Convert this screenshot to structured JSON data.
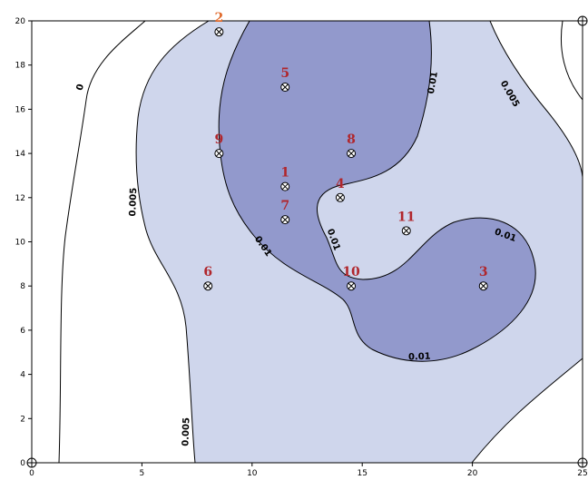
{
  "chart_data": {
    "type": "contour",
    "title": "",
    "xlabel": "",
    "ylabel": "",
    "xlim": [
      0,
      25
    ],
    "ylim": [
      0,
      20
    ],
    "x_ticks": [
      "0",
      "5",
      "10",
      "15",
      "20",
      "25"
    ],
    "y_ticks": [
      "0",
      "2",
      "4",
      "6",
      "8",
      "10",
      "12",
      "14",
      "16",
      "18",
      "20"
    ],
    "contour_levels": [
      0,
      0.005,
      0.01
    ],
    "region_colors": {
      "outer": "#ffffff",
      "low": "#cfd6ec",
      "high": "#9299cc"
    },
    "contour_labels": [
      {
        "text": "0",
        "x": 2.2,
        "y": 17.0
      },
      {
        "text": "0.005",
        "x": 4.6,
        "y": 11.8
      },
      {
        "text": "0.005",
        "x": 7.0,
        "y": 1.4
      },
      {
        "text": "0.005",
        "x": 21.7,
        "y": 16.7
      },
      {
        "text": "0.01",
        "x": 18.2,
        "y": 17.2
      },
      {
        "text": "0.01",
        "x": 10.5,
        "y": 9.8
      },
      {
        "text": "0.01",
        "x": 13.7,
        "y": 10.1
      },
      {
        "text": "0.01",
        "x": 21.5,
        "y": 10.3
      },
      {
        "text": "0.01",
        "x": 17.6,
        "y": 4.8
      }
    ],
    "points": [
      {
        "label": "1",
        "x": 11.5,
        "y": 12.5
      },
      {
        "label": "2",
        "x": 8.5,
        "y": 19.5
      },
      {
        "label": "3",
        "x": 20.5,
        "y": 8.0
      },
      {
        "label": "4",
        "x": 14.0,
        "y": 12.0
      },
      {
        "label": "5",
        "x": 11.5,
        "y": 17.0
      },
      {
        "label": "6",
        "x": 8.0,
        "y": 8.0
      },
      {
        "label": "7",
        "x": 11.5,
        "y": 11.0
      },
      {
        "label": "8",
        "x": 14.5,
        "y": 14.0
      },
      {
        "label": "9",
        "x": 8.5,
        "y": 14.0
      },
      {
        "label": "10",
        "x": 14.5,
        "y": 8.0
      },
      {
        "label": "11",
        "x": 17.0,
        "y": 10.5
      }
    ],
    "corner_markers": [
      {
        "x": 0,
        "y": 0
      },
      {
        "x": 25,
        "y": 0
      },
      {
        "x": 25,
        "y": 20
      }
    ],
    "colors": {
      "point_label": "#b0262c",
      "point_label_top": "#e06a2c",
      "contour_line": "#000000"
    }
  }
}
